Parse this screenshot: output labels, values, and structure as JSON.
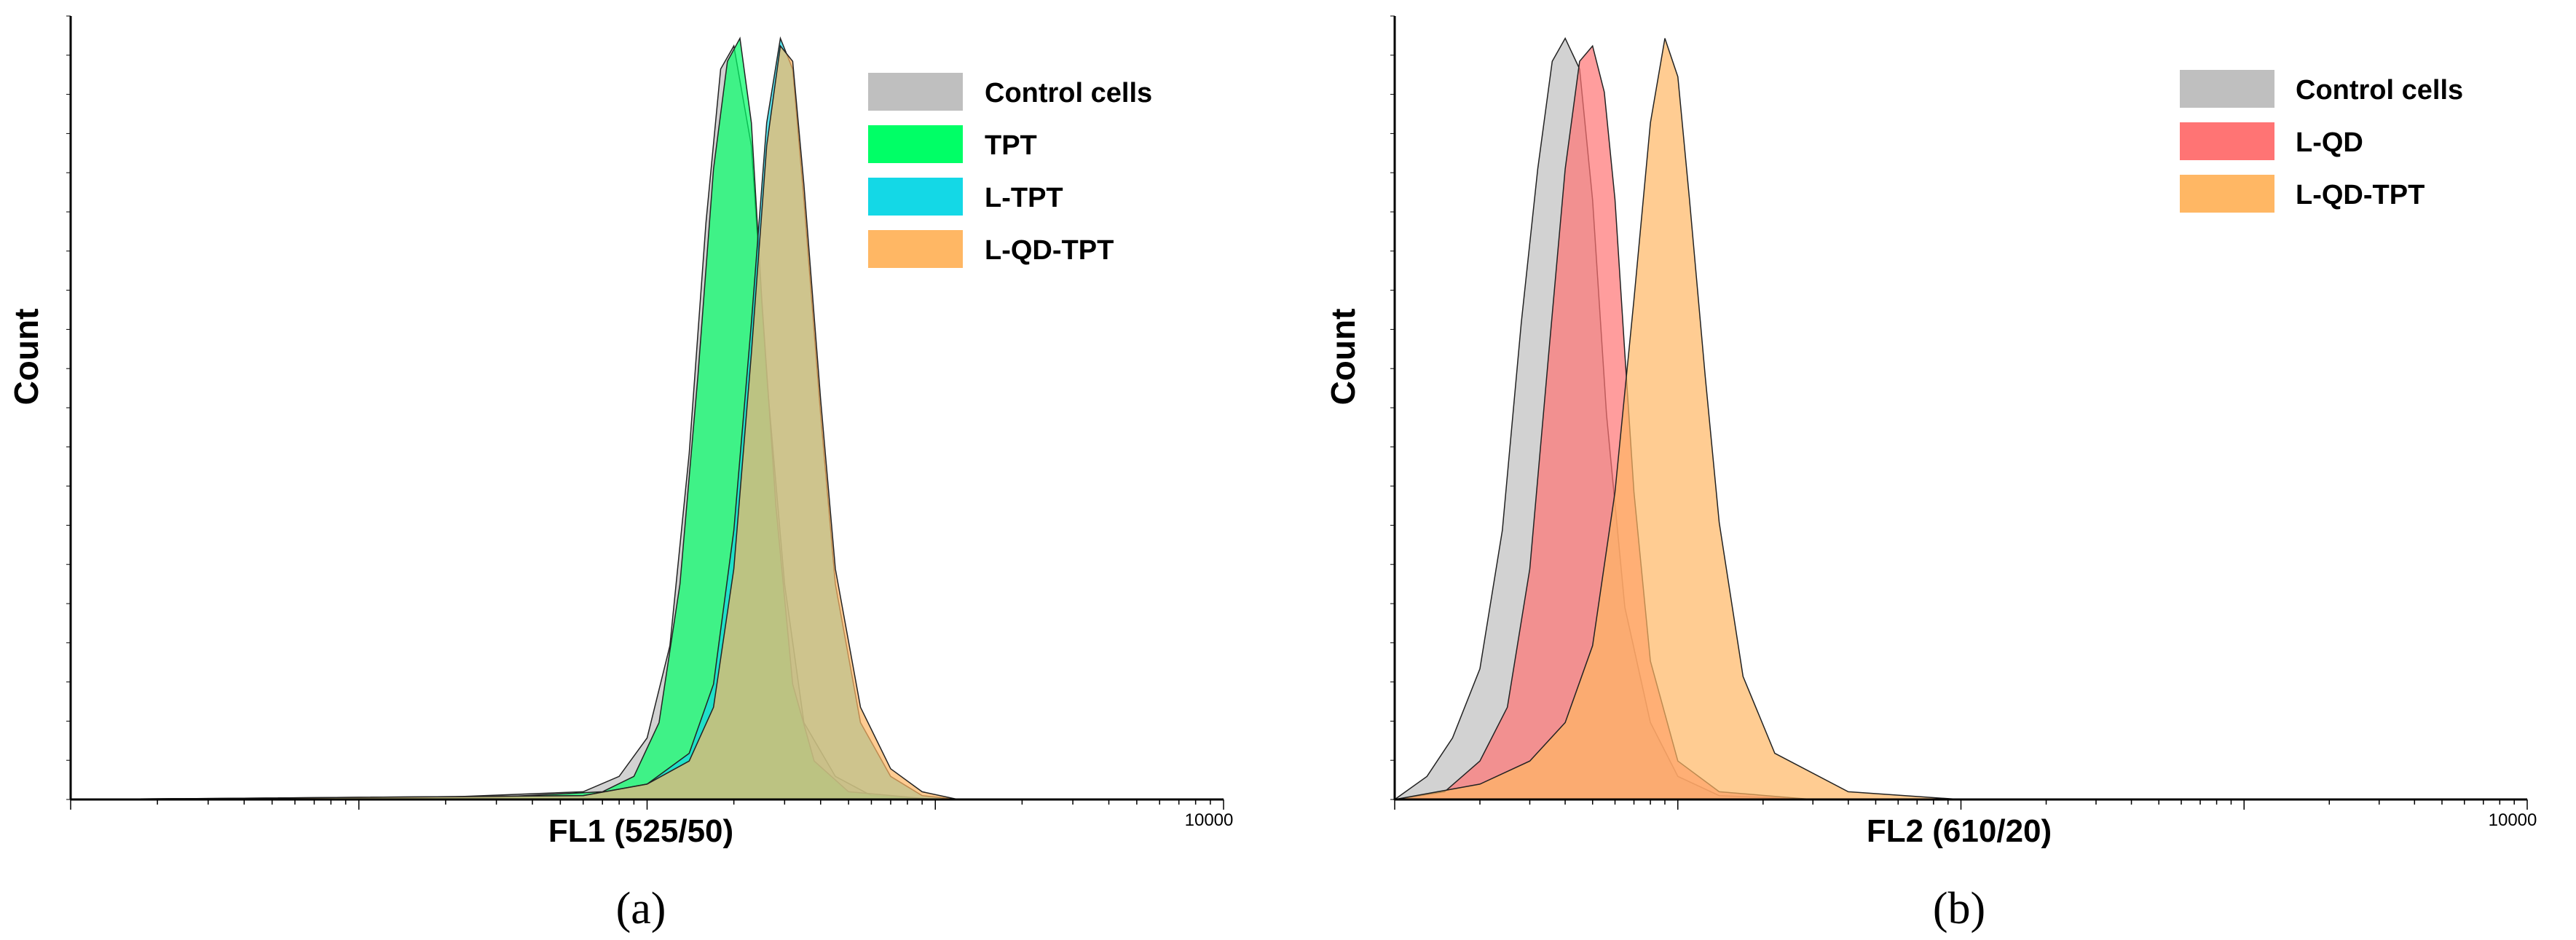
{
  "chart_data": [
    {
      "type": "area",
      "panel_label": "(a)",
      "xlabel": "FL1 (525/50)",
      "ylabel": "Count",
      "x_scale": "log",
      "xlim": [
        1,
        10000
      ],
      "ylim": [
        0,
        100
      ],
      "x_tick_labels": [
        "10000"
      ],
      "legend_position": "top-right",
      "series": [
        {
          "name": "Control cells",
          "color": "#bfbfbf",
          "x": [
            1,
            20,
            60,
            80,
            100,
            120,
            140,
            160,
            180,
            200,
            230,
            260,
            300,
            350,
            450,
            600,
            1000
          ],
          "values": [
            0,
            0.3,
            1,
            3,
            8,
            20,
            45,
            75,
            95,
            98,
            85,
            55,
            28,
            10,
            3,
            0.5,
            0
          ]
        },
        {
          "name": "TPT",
          "color": "#00ff66",
          "x": [
            1,
            30,
            70,
            90,
            110,
            130,
            150,
            170,
            190,
            210,
            230,
            250,
            280,
            320,
            380,
            500,
            1000
          ],
          "values": [
            0,
            0.3,
            1,
            3,
            10,
            28,
            55,
            82,
            96,
            99,
            88,
            65,
            38,
            15,
            5,
            1,
            0
          ]
        },
        {
          "name": "L-TPT",
          "color": "#14d8e6",
          "x": [
            1,
            60,
            100,
            140,
            170,
            200,
            230,
            260,
            290,
            320,
            350,
            400,
            450,
            550,
            700,
            900,
            1200
          ],
          "values": [
            0,
            0.5,
            2,
            6,
            15,
            35,
            62,
            88,
            99,
            95,
            78,
            50,
            28,
            10,
            3,
            0.5,
            0
          ]
        },
        {
          "name": "L-QD-TPT",
          "color": "#ffb764",
          "x": [
            1,
            60,
            100,
            140,
            170,
            200,
            230,
            260,
            290,
            320,
            350,
            400,
            450,
            550,
            700,
            900,
            1200
          ],
          "values": [
            0,
            0.5,
            2,
            5,
            12,
            30,
            58,
            85,
            98,
            96,
            80,
            52,
            30,
            12,
            4,
            1,
            0
          ]
        }
      ]
    },
    {
      "type": "area",
      "panel_label": "(b)",
      "xlabel": "FL2 (610/20)",
      "ylabel": "Count",
      "x_scale": "log",
      "xlim": [
        1,
        10000
      ],
      "ylim": [
        0,
        100
      ],
      "x_tick_labels": [
        "10000"
      ],
      "legend_position": "top-right",
      "series": [
        {
          "name": "Control cells",
          "color": "#bfbfbf",
          "x": [
            1,
            1.3,
            1.6,
            2,
            2.4,
            2.8,
            3.2,
            3.6,
            4,
            4.5,
            5,
            5.6,
            6.5,
            8,
            10,
            14,
            30
          ],
          "values": [
            0,
            3,
            8,
            17,
            35,
            62,
            82,
            96,
            99,
            95,
            78,
            50,
            25,
            10,
            3,
            0.5,
            0
          ]
        },
        {
          "name": "L-QD",
          "color": "#ff7474",
          "x": [
            1,
            1.5,
            2,
            2.5,
            3,
            3.5,
            4,
            4.5,
            5,
            5.5,
            6,
            6.5,
            7,
            8,
            10,
            14,
            30
          ],
          "values": [
            0,
            1,
            5,
            12,
            30,
            58,
            82,
            96,
            98,
            92,
            78,
            58,
            40,
            18,
            5,
            1,
            0
          ]
        },
        {
          "name": "L-QD-TPT",
          "color": "#ffb764",
          "x": [
            1,
            2,
            3,
            4,
            5,
            6,
            7,
            8,
            9,
            10,
            11,
            12.5,
            14,
            17,
            22,
            40,
            100
          ],
          "values": [
            0,
            2,
            5,
            10,
            20,
            40,
            65,
            88,
            99,
            94,
            78,
            55,
            36,
            16,
            6,
            1,
            0
          ]
        }
      ]
    }
  ]
}
